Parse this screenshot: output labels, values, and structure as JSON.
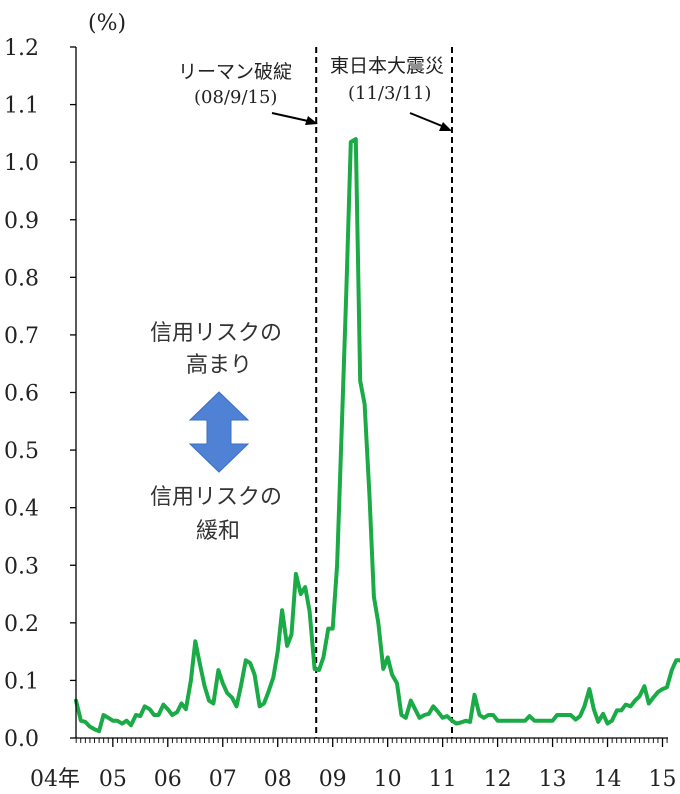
{
  "chart_data": {
    "type": "line",
    "unit_label": "(%)",
    "ylim": [
      0,
      1.2
    ],
    "y_ticks": [
      "0.0",
      "0.1",
      "0.2",
      "0.3",
      "0.4",
      "0.5",
      "0.6",
      "0.7",
      "0.8",
      "0.9",
      "1.0",
      "1.1",
      "1.2"
    ],
    "x_start": 2004.33,
    "x_end": 2015.1,
    "x_tick_labels": [
      {
        "year": 2004.33,
        "label": "04年"
      },
      {
        "year": 2005,
        "label": "05"
      },
      {
        "year": 2006,
        "label": "06"
      },
      {
        "year": 2007,
        "label": "07"
      },
      {
        "year": 2008,
        "label": "08"
      },
      {
        "year": 2009,
        "label": "09"
      },
      {
        "year": 2010,
        "label": "10"
      },
      {
        "year": 2011,
        "label": "11"
      },
      {
        "year": 2012,
        "label": "12"
      },
      {
        "year": 2013,
        "label": "13"
      },
      {
        "year": 2014,
        "label": "14"
      },
      {
        "year": 2015,
        "label": "15"
      }
    ],
    "series": [
      {
        "color": "#1aaa46",
        "points": [
          [
            2004.33,
            0.065
          ],
          [
            2004.42,
            0.03
          ],
          [
            2004.5,
            0.028
          ],
          [
            2004.58,
            0.02
          ],
          [
            2004.67,
            0.015
          ],
          [
            2004.75,
            0.012
          ],
          [
            2004.83,
            0.04
          ],
          [
            2004.92,
            0.035
          ],
          [
            2005.0,
            0.03
          ],
          [
            2005.08,
            0.03
          ],
          [
            2005.17,
            0.025
          ],
          [
            2005.25,
            0.03
          ],
          [
            2005.33,
            0.022
          ],
          [
            2005.42,
            0.04
          ],
          [
            2005.5,
            0.038
          ],
          [
            2005.58,
            0.055
          ],
          [
            2005.67,
            0.05
          ],
          [
            2005.75,
            0.04
          ],
          [
            2005.83,
            0.04
          ],
          [
            2005.92,
            0.058
          ],
          [
            2006.0,
            0.05
          ],
          [
            2006.08,
            0.04
          ],
          [
            2006.17,
            0.045
          ],
          [
            2006.25,
            0.06
          ],
          [
            2006.33,
            0.05
          ],
          [
            2006.42,
            0.1
          ],
          [
            2006.5,
            0.168
          ],
          [
            2006.58,
            0.13
          ],
          [
            2006.67,
            0.09
          ],
          [
            2006.75,
            0.065
          ],
          [
            2006.83,
            0.06
          ],
          [
            2006.92,
            0.118
          ],
          [
            2007.0,
            0.095
          ],
          [
            2007.08,
            0.078
          ],
          [
            2007.17,
            0.07
          ],
          [
            2007.25,
            0.055
          ],
          [
            2007.33,
            0.09
          ],
          [
            2007.42,
            0.135
          ],
          [
            2007.5,
            0.13
          ],
          [
            2007.58,
            0.11
          ],
          [
            2007.67,
            0.055
          ],
          [
            2007.75,
            0.06
          ],
          [
            2007.83,
            0.08
          ],
          [
            2007.92,
            0.105
          ],
          [
            2008.0,
            0.15
          ],
          [
            2008.08,
            0.222
          ],
          [
            2008.17,
            0.16
          ],
          [
            2008.25,
            0.18
          ],
          [
            2008.33,
            0.285
          ],
          [
            2008.42,
            0.25
          ],
          [
            2008.5,
            0.262
          ],
          [
            2008.58,
            0.22
          ],
          [
            2008.67,
            0.12
          ],
          [
            2008.75,
            0.118
          ],
          [
            2008.83,
            0.14
          ],
          [
            2008.92,
            0.19
          ],
          [
            2009.0,
            0.19
          ],
          [
            2009.08,
            0.3
          ],
          [
            2009.17,
            0.55
          ],
          [
            2009.25,
            0.78
          ],
          [
            2009.33,
            1.035
          ],
          [
            2009.42,
            1.04
          ],
          [
            2009.5,
            0.62
          ],
          [
            2009.58,
            0.58
          ],
          [
            2009.67,
            0.42
          ],
          [
            2009.75,
            0.245
          ],
          [
            2009.83,
            0.2
          ],
          [
            2009.92,
            0.12
          ],
          [
            2010.0,
            0.14
          ],
          [
            2010.08,
            0.11
          ],
          [
            2010.17,
            0.095
          ],
          [
            2010.25,
            0.04
          ],
          [
            2010.33,
            0.035
          ],
          [
            2010.42,
            0.065
          ],
          [
            2010.5,
            0.05
          ],
          [
            2010.58,
            0.035
          ],
          [
            2010.67,
            0.04
          ],
          [
            2010.75,
            0.042
          ],
          [
            2010.83,
            0.055
          ],
          [
            2010.92,
            0.045
          ],
          [
            2011.0,
            0.035
          ],
          [
            2011.08,
            0.038
          ],
          [
            2011.17,
            0.03
          ],
          [
            2011.25,
            0.025
          ],
          [
            2011.33,
            0.027
          ],
          [
            2011.42,
            0.03
          ],
          [
            2011.5,
            0.028
          ],
          [
            2011.58,
            0.075
          ],
          [
            2011.67,
            0.04
          ],
          [
            2011.75,
            0.035
          ],
          [
            2011.83,
            0.04
          ],
          [
            2011.92,
            0.04
          ],
          [
            2012.0,
            0.03
          ],
          [
            2012.17,
            0.03
          ],
          [
            2012.33,
            0.03
          ],
          [
            2012.5,
            0.03
          ],
          [
            2012.58,
            0.038
          ],
          [
            2012.67,
            0.03
          ],
          [
            2012.83,
            0.03
          ],
          [
            2013.0,
            0.03
          ],
          [
            2013.08,
            0.04
          ],
          [
            2013.25,
            0.04
          ],
          [
            2013.33,
            0.04
          ],
          [
            2013.42,
            0.032
          ],
          [
            2013.5,
            0.038
          ],
          [
            2013.58,
            0.055
          ],
          [
            2013.67,
            0.085
          ],
          [
            2013.75,
            0.05
          ],
          [
            2013.83,
            0.028
          ],
          [
            2013.92,
            0.042
          ],
          [
            2014.0,
            0.025
          ],
          [
            2014.08,
            0.03
          ],
          [
            2014.17,
            0.048
          ],
          [
            2014.25,
            0.048
          ],
          [
            2014.33,
            0.058
          ],
          [
            2014.42,
            0.055
          ],
          [
            2014.5,
            0.065
          ],
          [
            2014.58,
            0.072
          ],
          [
            2014.67,
            0.09
          ],
          [
            2014.75,
            0.06
          ],
          [
            2014.83,
            0.07
          ],
          [
            2014.92,
            0.08
          ],
          [
            2015.0,
            0.085
          ],
          [
            2015.08,
            0.088
          ],
          [
            2015.17,
            0.118
          ],
          [
            2015.25,
            0.135
          ],
          [
            2015.33,
            0.135
          ],
          [
            2015.42,
            0.12
          ],
          [
            2015.5,
            0.138
          ],
          [
            2015.58,
            0.115
          ]
        ]
      }
    ],
    "events": [
      {
        "year": 2008.7,
        "label": "リーマン破綻",
        "date": "(08/9/15)"
      },
      {
        "year": 2011.17,
        "label": "東日本大震災",
        "date": "(11/3/11)"
      }
    ],
    "arrow_annotation": {
      "color": "#4f81d4",
      "up_text_line1": "信用リスクの",
      "up_text_line2": "高まり",
      "down_text_line1": "信用リスクの",
      "down_text_line2": "緩和"
    }
  }
}
